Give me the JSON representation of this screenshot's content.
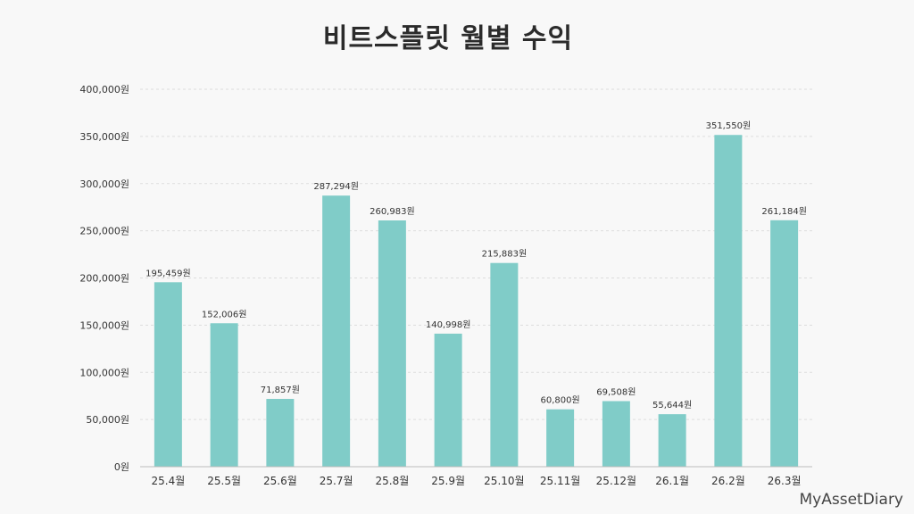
{
  "chart_data": {
    "type": "bar",
    "title": "비트스플릿 월별 수익",
    "xlabel": "",
    "ylabel": "",
    "categories": [
      "25.4월",
      "25.5월",
      "25.6월",
      "25.7월",
      "25.8월",
      "25.9월",
      "25.10월",
      "25.11월",
      "25.12월",
      "26.1월",
      "26.2월",
      "26.3월"
    ],
    "values": [
      195459,
      152006,
      71857,
      287294,
      260983,
      140998,
      215883,
      60800,
      69508,
      55644,
      351550,
      261184
    ],
    "value_labels": [
      "195,459원",
      "152,006원",
      "71,857원",
      "287,294원",
      "260,983원",
      "140,998원",
      "215,883원",
      "60,800원",
      "69,508원",
      "55,644원",
      "351,550원",
      "261,184원"
    ],
    "ylim": [
      0,
      400000
    ],
    "y_ticks": [
      0,
      50000,
      100000,
      150000,
      200000,
      250000,
      300000,
      350000,
      400000
    ],
    "y_tick_labels": [
      "0원",
      "50,000원",
      "100,000원",
      "150,000원",
      "200,000원",
      "250,000원",
      "300,000원",
      "350,000원",
      "400,000원"
    ],
    "grid": true,
    "bar_color": "#80ccc8",
    "grid_color": "#dddddd"
  },
  "watermark": "MyAssetDiary"
}
